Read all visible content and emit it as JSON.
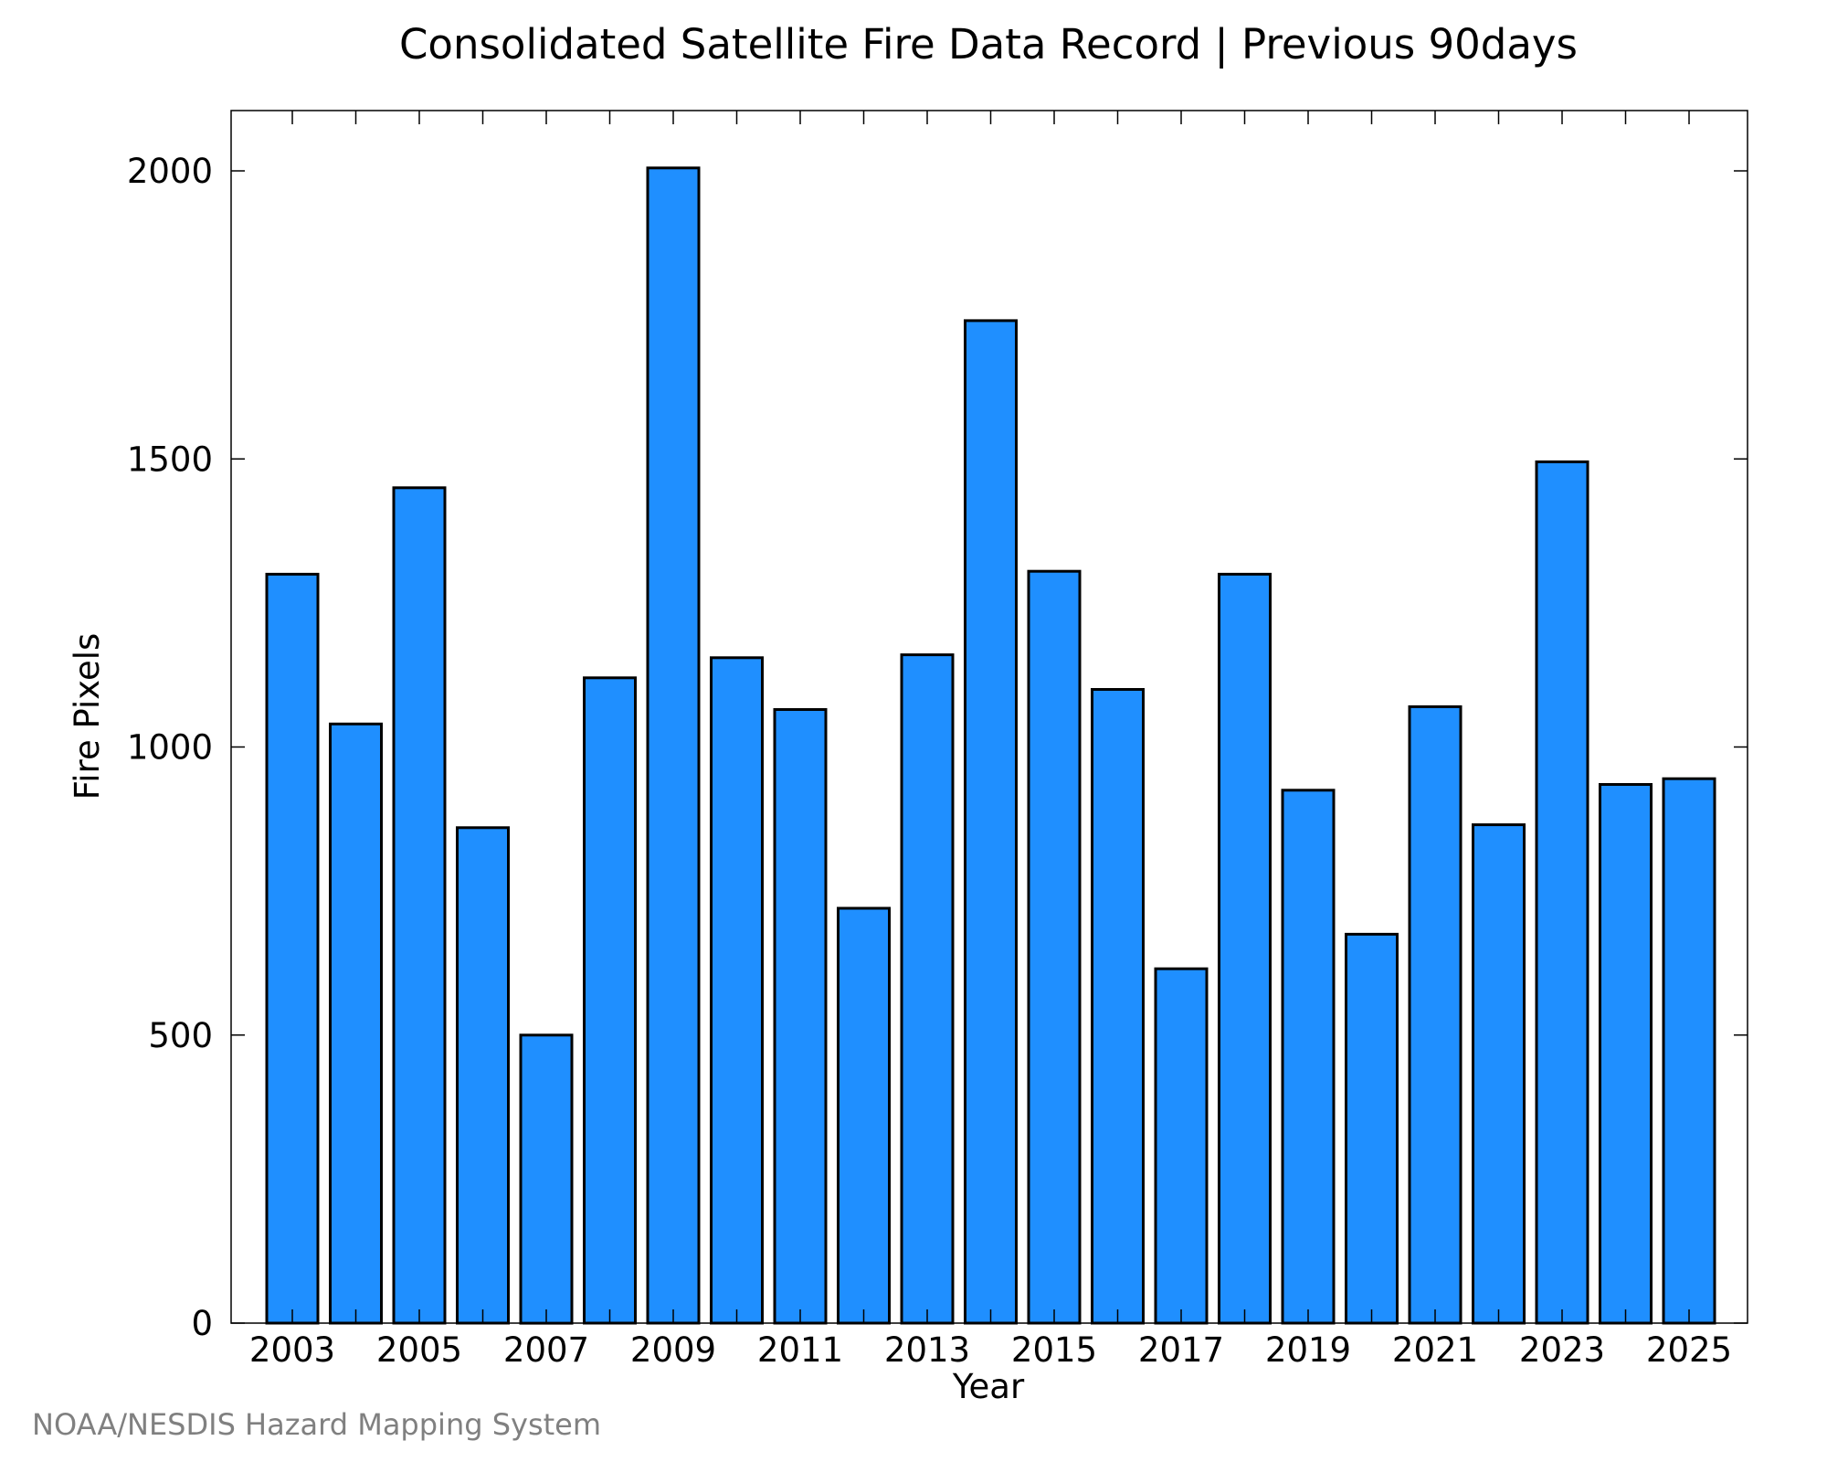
{
  "chart_data": {
    "type": "bar",
    "title": "Consolidated Satellite Fire Data Record | Previous 90days",
    "xlabel": "Year",
    "ylabel": "Fire Pixels",
    "categories": [
      "2003",
      "2004",
      "2005",
      "2006",
      "2007",
      "2008",
      "2009",
      "2010",
      "2011",
      "2012",
      "2013",
      "2014",
      "2015",
      "2016",
      "2017",
      "2018",
      "2019",
      "2020",
      "2021",
      "2022",
      "2023",
      "2024",
      "2025"
    ],
    "values": [
      1300,
      1040,
      1450,
      860,
      500,
      1120,
      2005,
      1155,
      1065,
      720,
      1160,
      1740,
      1305,
      1100,
      615,
      1300,
      925,
      675,
      1070,
      865,
      1495,
      935,
      945
    ],
    "x_tick_labels": [
      "2003",
      "2005",
      "2007",
      "2009",
      "2011",
      "2013",
      "2015",
      "2017",
      "2019",
      "2021",
      "2023",
      "2025"
    ],
    "y_ticks": [
      0,
      500,
      1000,
      1500,
      2000
    ],
    "y_tick_labels": [
      "0",
      "500",
      "1000",
      "1500",
      "2000"
    ],
    "ylim": [
      0,
      2100
    ],
    "grid": false,
    "legend": "none",
    "colors": {
      "bar_fill": "#1f8fff",
      "bar_stroke": "#000000"
    }
  },
  "credit": "NOAA/NESDIS Hazard Mapping System"
}
